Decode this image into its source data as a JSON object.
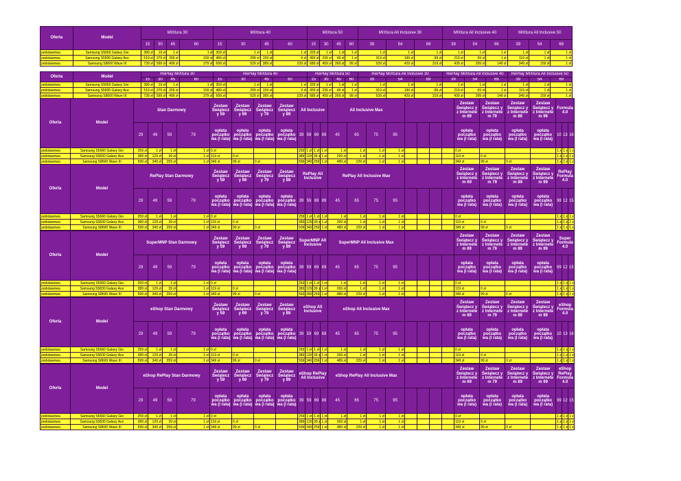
{
  "labels": {
    "oferta": "Oferta",
    "model": "Model"
  },
  "rows": [
    {
      "typ": "podstawowa",
      "model": "Samsung S5660 Galaxy Gio"
    },
    {
      "typ": "podstawowa",
      "model": "Samsung S5830 Galaxy Ace"
    },
    {
      "typ": "podstawowa",
      "model": "Samsung S8600 Wave III"
    }
  ],
  "mix": {
    "groups": [
      "MIXtura 30",
      "MIXtura 40",
      "MIXtura 50",
      "MIXtura All Inclusive 30",
      "MIXtura All Inclusive 40",
      "MIXtura All Inclusive 50"
    ],
    "replay_groups": [
      "RePlay MIXtura 30",
      "RePlay MIXtura 40",
      "RePlay MIXtura 50",
      "RePlay MIXtura All Inclusive 30",
      "RePlay MIXtura All Inclusive 40",
      "RePlay MIXtura All Inclusive 50"
    ],
    "cols": [
      "15",
      "30",
      "45",
      "60",
      "15",
      "30",
      "45",
      "60",
      "15",
      "30",
      "45",
      "60",
      "39",
      "54",
      "69",
      "39",
      "54",
      "69",
      "39",
      "54",
      "69"
    ],
    "values": [
      [
        "389 zł",
        "19 zł",
        "1 zł",
        "1 zł",
        "359 zł",
        "1 zł",
        "1 zł",
        "1 zł",
        "329 zł",
        "1 zł",
        "1 zł",
        "1 zł",
        "1 zł",
        "1 zł",
        "1 zł",
        "1 zł",
        "1 zł",
        "1 zł",
        "1 zł",
        "1 zł",
        "1 zł"
      ],
      [
        "519 zł",
        "379 zł",
        "269 zł",
        "159 zł",
        "489 zł",
        "299 zł",
        "159 zł",
        "9 zł",
        "459 zł",
        "239 zł",
        "49 zł",
        "1 zł",
        "319 zł",
        "199 zł",
        "89 zł",
        "219 zł",
        "69 zł",
        "1 zł",
        "119 zł",
        "1 zł",
        "1 zł"
      ],
      [
        "739 zł",
        "599 zł",
        "499 zł",
        "379 zł",
        "699 zł",
        "529 zł",
        "389 zł",
        "229 zł",
        "689 zł",
        "459 zł",
        "269 zł",
        "99 zł",
        "539 zł",
        "429 zł",
        "319 zł",
        "439 zł",
        "299 zł",
        "149 zł",
        "349 zł",
        "159 zł",
        "1 zł"
      ]
    ]
  },
  "sections": [
    {
      "first": "Stan Darmowy",
      "inc": "All Inclusive",
      "max": "All Inclusive Max",
      "formula": "Formula 4.0",
      "fcols": [
        "109",
        "139",
        "169"
      ]
    },
    {
      "first": "RePlay Stan Darmowy",
      "inc": "RePlay All Inclusive",
      "max": "RePlay All Inclusive Max",
      "formula": "RePlay Formula 4.0",
      "fcols": [
        "99",
        "129",
        "159"
      ]
    },
    {
      "first": "SuperMNP Stan Darmowy",
      "inc": "SuperMNP All Inclusive",
      "max": "SuperMNP All Inclusive Max",
      "formula": "Super Formula 4.0",
      "fcols": [
        "99",
        "129",
        "159"
      ]
    },
    {
      "first": "eShop Stan Darmowy",
      "inc": "eShop All Inclusive",
      "max": "eShop All Inclusive Max",
      "formula": "eShop Formula 4.0",
      "fcols": [
        "109",
        "139",
        "169"
      ]
    },
    {
      "first": "eShop RePlay Stan Darmowy",
      "inc": "eShop RePlay All Inclusive",
      "max": "eShop RePlay All Inclusive Max",
      "formula": "eShop RePlay Formula 4.0",
      "fcols": [
        "99",
        "129",
        "159"
      ]
    }
  ],
  "sec_common": {
    "swiat": [
      "Zestaw Świątecz y 59",
      "Zestaw Świątecz y 69",
      "Zestaw Świątecz y 79",
      "Zestaw Świątecz y 89"
    ],
    "internet": [
      "Zestaw Świątecz y z Internete m 69",
      "Zestaw Świątecz y z Internete m 79",
      "Zestaw Świątecz y z Internete m 89",
      "Zestaw Świątecz y z Internete m 99"
    ],
    "oplata": "opłata początko wa (I rata)",
    "sd_cols": [
      "29",
      "49",
      "59",
      "79"
    ],
    "inc_cols": [
      "39",
      "59",
      "69",
      "89"
    ],
    "max_cols": [
      "45",
      "65",
      "75",
      "95"
    ]
  },
  "sec_values": [
    {
      "sd": [
        [
          "259 zł",
          "1 zł",
          "1 zł",
          "1 zł"
        ],
        [
          "389 zł",
          "129 zł",
          "39 zł",
          "1 zł"
        ],
        [
          "599 zł",
          "349 zł",
          "259 zł",
          "1 zł"
        ]
      ],
      "sw": [
        [
          "0 zł",
          "",
          "",
          ""
        ],
        [
          "119 zł",
          "0 zł",
          "",
          ""
        ],
        [
          "349 zł",
          "99 zł",
          "0 zł",
          ""
        ]
      ],
      "inc": [
        [
          "259 zł",
          "1 zł",
          "1 zł",
          "1 zł"
        ],
        [
          "389 zł",
          "129 zł",
          "39 zł",
          "1 zł"
        ],
        [
          "599 zł",
          "349 zł",
          "259 zł",
          "1 zł"
        ]
      ],
      "max": [
        [
          "1 zł",
          "1 zł",
          "1 zł",
          "1 zł"
        ],
        [
          "269 zł",
          "1 zł",
          "1 zł",
          "1 zł"
        ],
        [
          "489 zł",
          "229 zł",
          "1 zł",
          "1 zł"
        ]
      ],
      "int": [
        [
          "0 zł",
          "",
          "",
          ""
        ],
        [
          "119 zł",
          "0 zł",
          "",
          ""
        ],
        [
          "349 zł",
          "99 zł",
          "0 zł",
          ""
        ]
      ],
      "f": [
        [
          "1 zł",
          "1 zł",
          "1 zł"
        ],
        [
          "1 zł",
          "1 zł",
          "1 zł"
        ],
        [
          "1 zł",
          "1 zł",
          "1 zł"
        ]
      ]
    },
    {
      "sd": [
        [
          "259 zł",
          "1 zł",
          "1 zł",
          "1 zł"
        ],
        [
          "389 zł",
          "129 zł",
          "39 zł",
          "1 zł"
        ],
        [
          "599 zł",
          "349 zł",
          "259 zł",
          "1 zł"
        ]
      ],
      "sw": [
        [
          "0 zł",
          "",
          "",
          ""
        ],
        [
          "119 zł",
          "0 zł",
          "",
          ""
        ],
        [
          "349 zł",
          "99 zł",
          "0 zł",
          ""
        ]
      ],
      "inc": [
        [
          "259 zł",
          "1 zł",
          "1 zł",
          "1 zł"
        ],
        [
          "389 zł",
          "129 zł",
          "39 zł",
          "1 zł"
        ],
        [
          "599 zł",
          "349 zł",
          "259 zł",
          "1 zł"
        ]
      ],
      "max": [
        [
          "1 zł",
          "1 zł",
          "1 zł",
          "1 zł"
        ],
        [
          "269 zł",
          "1 zł",
          "1 zł",
          "1 zł"
        ],
        [
          "489 zł",
          "229 zł",
          "1 zł",
          "1 zł"
        ]
      ],
      "int": [
        [
          "0 zł",
          "",
          "",
          ""
        ],
        [
          "119 zł",
          "0 zł",
          "",
          ""
        ],
        [
          "349 zł",
          "99 zł",
          "0 zł",
          ""
        ]
      ],
      "f": [
        [
          "1 zł",
          "1 zł",
          "1 zł"
        ],
        [
          "1 zł",
          "1 zł",
          "1 zł"
        ],
        [
          "1 zł",
          "1 zł",
          "1 zł"
        ]
      ]
    },
    {
      "sd": [
        [
          "259 zł",
          "1 zł",
          "1 zł",
          "1 zł"
        ],
        [
          "389 zł",
          "129 zł",
          "39 zł",
          "1 zł"
        ],
        [
          "599 zł",
          "349 zł",
          "259 zł",
          "1 zł"
        ]
      ],
      "sw": [
        [
          "0 zł",
          "",
          "",
          ""
        ],
        [
          "119 zł",
          "0 zł",
          "",
          ""
        ],
        [
          "349 zł",
          "99 zł",
          "0 zł",
          ""
        ]
      ],
      "inc": [
        [
          "259 zł",
          "1 zł",
          "1 zł",
          "1 zł"
        ],
        [
          "389 zł",
          "129 zł",
          "39 zł",
          "1 zł"
        ],
        [
          "599 zł",
          "349 zł",
          "259 zł",
          "1 zł"
        ]
      ],
      "max": [
        [
          "1 zł",
          "1 zł",
          "1 zł",
          "1 zł"
        ],
        [
          "269 zł",
          "1 zł",
          "1 zł",
          "1 zł"
        ],
        [
          "489 zł",
          "229 zł",
          "1 zł",
          "1 zł"
        ]
      ],
      "int": [
        [
          "0 zł",
          "",
          "",
          ""
        ],
        [
          "119 zł",
          "0 zł",
          "",
          ""
        ],
        [
          "349 zł",
          "99 zł",
          "0 zł",
          ""
        ]
      ],
      "f": [
        [
          "1 zł",
          "1 zł",
          "1 zł"
        ],
        [
          "1 zł",
          "1 zł",
          "1 zł"
        ],
        [
          "1 zł",
          "1 zł",
          "1 zł"
        ]
      ]
    },
    {
      "sd": [
        [
          "259 zł",
          "1 zł",
          "1 zł",
          "1 zł"
        ],
        [
          "389 zł",
          "129 zł",
          "39 zł",
          "1 zł"
        ],
        [
          "599 zł",
          "349 zł",
          "259 zł",
          "1 zł"
        ]
      ],
      "sw": [
        [
          "0 zł",
          "",
          "",
          ""
        ],
        [
          "119 zł",
          "0 zł",
          "",
          ""
        ],
        [
          "349 zł",
          "99 zł",
          "0 zł",
          ""
        ]
      ],
      "inc": [
        [
          "259 zł",
          "1 zł",
          "1 zł",
          "1 zł"
        ],
        [
          "389 zł",
          "129 zł",
          "39 zł",
          "1 zł"
        ],
        [
          "599 zł",
          "349 zł",
          "259 zł",
          "1 zł"
        ]
      ],
      "max": [
        [
          "1 zł",
          "1 zł",
          "1 zł",
          "1 zł"
        ],
        [
          "269 zł",
          "1 zł",
          "1 zł",
          "1 zł"
        ],
        [
          "489 zł",
          "229 zł",
          "1 zł",
          "1 zł"
        ]
      ],
      "int": [
        [
          "0 zł",
          "",
          "",
          ""
        ],
        [
          "119 zł",
          "0 zł",
          "",
          ""
        ],
        [
          "349 zł",
          "99 zł",
          "0 zł",
          ""
        ]
      ],
      "f": [
        [
          "1 zł",
          "1 zł",
          "1 zł"
        ],
        [
          "1 zł",
          "1 zł",
          "1 zł"
        ],
        [
          "1 zł",
          "1 zł",
          "1 zł"
        ]
      ]
    },
    {
      "sd": [
        [
          "259 zł",
          "1 zł",
          "1 zł",
          "1 zł"
        ],
        [
          "389 zł",
          "129 zł",
          "39 zł",
          "1 zł"
        ],
        [
          "599 zł",
          "349 zł",
          "259 zł",
          "1 zł"
        ]
      ],
      "sw": [
        [
          "0 zł",
          "",
          "",
          ""
        ],
        [
          "119 zł",
          "0 zł",
          "",
          ""
        ],
        [
          "349 zł",
          "99 zł",
          "0 zł",
          ""
        ]
      ],
      "inc": [
        [
          "259 zł",
          "1 zł",
          "1 zł",
          "1 zł"
        ],
        [
          "389 zł",
          "129 zł",
          "39 zł",
          "1 zł"
        ],
        [
          "599 zł",
          "349 zł",
          "259 zł",
          "1 zł"
        ]
      ],
      "max": [
        [
          "1 zł",
          "1 zł",
          "1 zł",
          "1 zł"
        ],
        [
          "269 zł",
          "1 zł",
          "1 zł",
          "1 zł"
        ],
        [
          "489 zł",
          "229 zł",
          "1 zł",
          "1 zł"
        ]
      ],
      "int": [
        [
          "0 zł",
          "",
          "",
          ""
        ],
        [
          "119 zł",
          "0 zł",
          "",
          ""
        ],
        [
          "349 zł",
          "99 zł",
          "0 zł",
          ""
        ]
      ],
      "f": [
        [
          "1 zł",
          "1 zł",
          "1 zł"
        ],
        [
          "1 zł",
          "1 zł",
          "1 zł"
        ],
        [
          "1 zł",
          "1 zł",
          "1 zł"
        ]
      ]
    }
  ]
}
